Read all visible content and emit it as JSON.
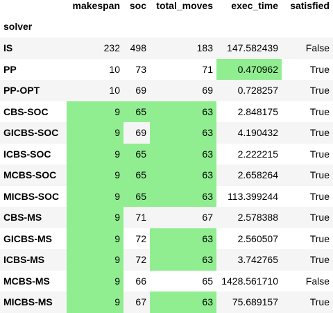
{
  "table": {
    "index_name": "solver",
    "columns": [
      "makespan",
      "soc",
      "total_moves",
      "exec_time",
      "satisfied"
    ],
    "highlight_color": "#90ee90",
    "rows": [
      {
        "solver": "IS",
        "cells": [
          "232",
          "498",
          "183",
          "147.582439",
          "False"
        ],
        "highlight": [
          false,
          false,
          false,
          false,
          false
        ]
      },
      {
        "solver": "PP",
        "cells": [
          "10",
          "73",
          "71",
          "0.470962",
          "True"
        ],
        "highlight": [
          false,
          false,
          false,
          true,
          false
        ]
      },
      {
        "solver": "PP-OPT",
        "cells": [
          "10",
          "69",
          "69",
          "0.728257",
          "True"
        ],
        "highlight": [
          false,
          false,
          false,
          false,
          false
        ]
      },
      {
        "solver": "CBS-SOC",
        "cells": [
          "9",
          "65",
          "63",
          "2.848175",
          "True"
        ],
        "highlight": [
          true,
          true,
          true,
          false,
          false
        ]
      },
      {
        "solver": "GICBS-SOC",
        "cells": [
          "9",
          "69",
          "63",
          "4.190432",
          "True"
        ],
        "highlight": [
          true,
          false,
          true,
          false,
          false
        ]
      },
      {
        "solver": "ICBS-SOC",
        "cells": [
          "9",
          "65",
          "63",
          "2.222215",
          "True"
        ],
        "highlight": [
          true,
          true,
          true,
          false,
          false
        ]
      },
      {
        "solver": "MCBS-SOC",
        "cells": [
          "9",
          "65",
          "63",
          "2.658264",
          "True"
        ],
        "highlight": [
          true,
          true,
          true,
          false,
          false
        ]
      },
      {
        "solver": "MICBS-SOC",
        "cells": [
          "9",
          "65",
          "63",
          "113.399244",
          "True"
        ],
        "highlight": [
          true,
          true,
          true,
          false,
          false
        ]
      },
      {
        "solver": "CBS-MS",
        "cells": [
          "9",
          "71",
          "67",
          "2.578388",
          "True"
        ],
        "highlight": [
          true,
          false,
          false,
          false,
          false
        ]
      },
      {
        "solver": "GICBS-MS",
        "cells": [
          "9",
          "72",
          "63",
          "2.560507",
          "True"
        ],
        "highlight": [
          true,
          false,
          true,
          false,
          false
        ]
      },
      {
        "solver": "ICBS-MS",
        "cells": [
          "9",
          "72",
          "63",
          "3.742765",
          "True"
        ],
        "highlight": [
          true,
          false,
          true,
          false,
          false
        ]
      },
      {
        "solver": "MCBS-MS",
        "cells": [
          "9",
          "66",
          "65",
          "1428.561710",
          "False"
        ],
        "highlight": [
          true,
          false,
          false,
          false,
          false
        ]
      },
      {
        "solver": "MICBS-MS",
        "cells": [
          "9",
          "67",
          "63",
          "75.689157",
          "True"
        ],
        "highlight": [
          true,
          false,
          true,
          false,
          false
        ]
      }
    ]
  }
}
